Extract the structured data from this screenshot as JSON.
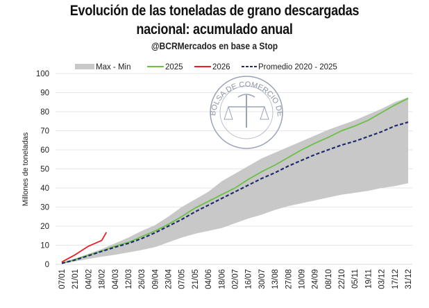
{
  "chart_data": {
    "type": "line",
    "title": "Evolución de las toneladas de grano descargadas nacional: acumulado anual",
    "title_line1": "Evolución de las toneladas de grano descargadas",
    "title_line2": "nacional: acumulado anual",
    "subtitle": "@BCRMercados en base a Stop",
    "watermark": "BOLSA DE COMERCIO DE ROSARIO",
    "xlabel": "",
    "ylabel": "Millones de toneladas",
    "ylim": [
      0,
      100
    ],
    "yticks": [
      0,
      10,
      20,
      30,
      40,
      50,
      60,
      70,
      80,
      90,
      100
    ],
    "grid": true,
    "legend_position": "top",
    "categories": [
      "07/01",
      "21/01",
      "04/02",
      "18/02",
      "04/03",
      "12/03",
      "26/03",
      "09/04",
      "23/04",
      "07/05",
      "21/05",
      "04/06",
      "18/06",
      "02/07",
      "16/07",
      "30/07",
      "13/08",
      "27/08",
      "10/09",
      "24/09",
      "08/10",
      "22/10",
      "05/11",
      "19/11",
      "03/12",
      "17/12",
      "31/12"
    ],
    "band": {
      "name": "Max - Min",
      "color": "#c8c8c8",
      "max": [
        1,
        3,
        5.5,
        8,
        11,
        14,
        17.5,
        20.5,
        25,
        30,
        34,
        38,
        43.5,
        47.5,
        51.5,
        55.5,
        58.5,
        61.5,
        64.5,
        67.5,
        70.5,
        73,
        75.5,
        78.5,
        81.5,
        85,
        87.5
      ],
      "min": [
        0.3,
        1.5,
        2.8,
        4,
        5,
        6.2,
        7.5,
        9,
        11.5,
        14,
        16,
        17.5,
        19,
        21.5,
        24,
        26,
        28.5,
        30.5,
        32,
        33.5,
        35,
        36.5,
        37.5,
        38.5,
        40,
        41,
        42.5
      ]
    },
    "series": [
      {
        "name": "2025",
        "color": "#6abf45",
        "style": "solid",
        "values": [
          0.5,
          2.5,
          4.8,
          7,
          9.5,
          11.5,
          14.5,
          17.5,
          21,
          25,
          29.5,
          33,
          36.5,
          40,
          44.5,
          48.5,
          52,
          56,
          60,
          63.5,
          66.5,
          70,
          72.5,
          75.5,
          79.5,
          83.5,
          87
        ]
      },
      {
        "name": "2026",
        "color": "#ee1c25",
        "style": "solid",
        "values": [
          1.2,
          5,
          9.5,
          12.5,
          16.8
        ]
      },
      {
        "name": "Promedio 2020 - 2025",
        "color": "#1f2a6e",
        "style": "dashed",
        "values": [
          0.5,
          2.3,
          4.5,
          6.8,
          9,
          11,
          13.5,
          16.5,
          20,
          23.5,
          27.5,
          31,
          34.5,
          38,
          41.5,
          45,
          48,
          51.5,
          54.5,
          57.5,
          60,
          62.5,
          64.5,
          67,
          69.5,
          72.5,
          74.5
        ]
      }
    ],
    "legend": [
      "Max - Min",
      "2025",
      "2026",
      "Promedio 2020 - 2025"
    ]
  }
}
